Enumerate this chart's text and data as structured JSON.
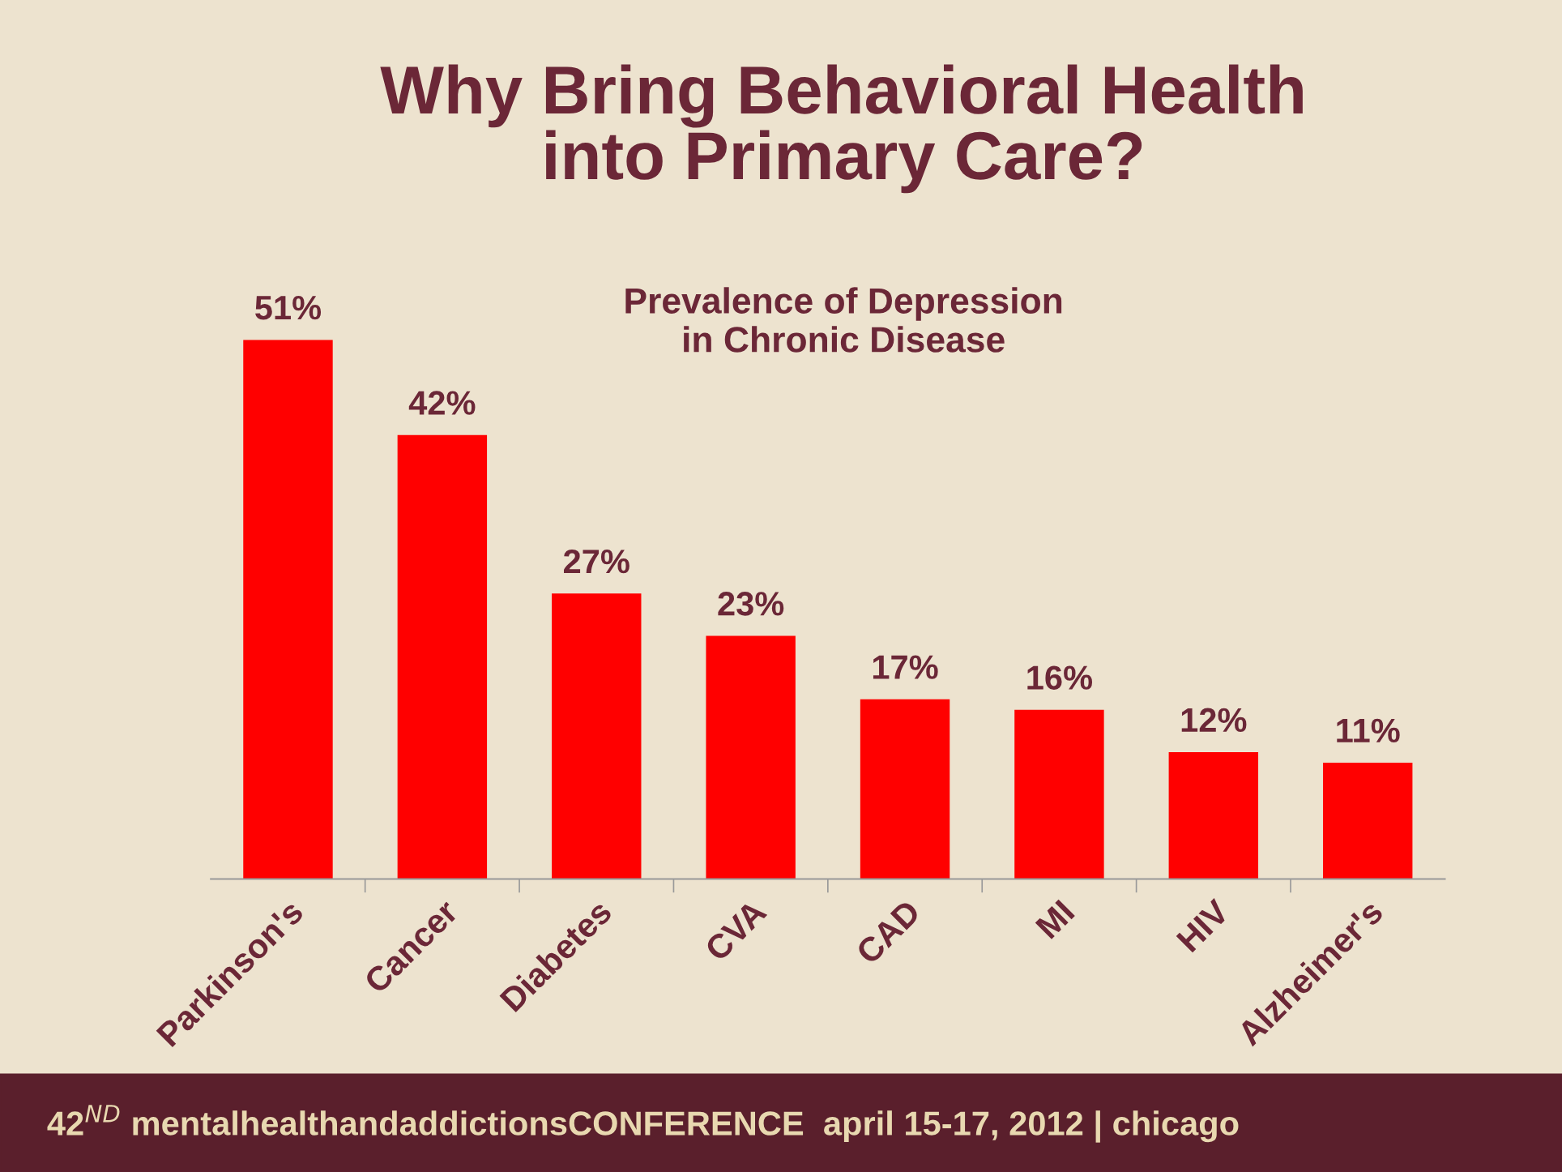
{
  "chart_data": {
    "type": "bar",
    "title": "Why Bring Behavioral Health\ninto Primary Care?",
    "subtitle": "Prevalence of Depression\nin Chronic Disease",
    "categories": [
      "Parkinson's",
      "Cancer",
      "Diabetes",
      "CVA",
      "CAD",
      "MI",
      "HIV",
      "Alzheimer's"
    ],
    "values": [
      51,
      42,
      27,
      23,
      17,
      16,
      12,
      11
    ],
    "color": "#ff0000",
    "value_labels": [
      "51%",
      "42%",
      "27%",
      "23%",
      "17%",
      "16%",
      "12%",
      "11%"
    ],
    "annotations": [
      "42$^{ND}$ mentalhealthandaddictionsCONFERENCE  april 15-17, 2012 | chicago"
    ],
    "grid": false,
    "legend": false
  }
}
